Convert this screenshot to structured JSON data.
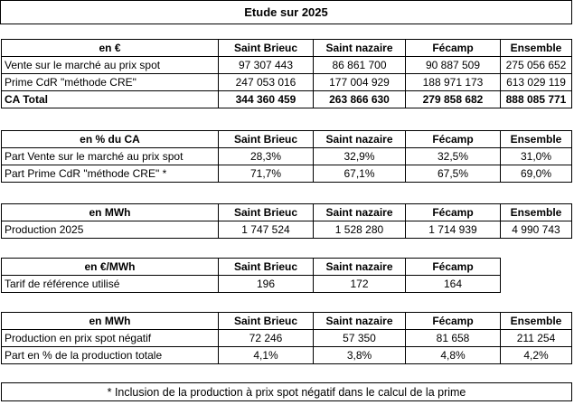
{
  "title": "Etude sur 2025",
  "sections": [
    {
      "header": [
        "en €",
        "Saint Brieuc",
        "Saint nazaire",
        "Fécamp",
        "Ensemble"
      ],
      "rows": [
        [
          "Vente sur le marché au prix spot",
          "97 307 443",
          "86 861 700",
          "90 887 509",
          "275 056 652"
        ],
        [
          "Prime CdR \"méthode CRE\"",
          "247 053 016",
          "177 004 929",
          "188 971 173",
          "613 029 119"
        ],
        [
          "CA Total",
          "344 360 459",
          "263 866 630",
          "279 858 682",
          "888 085 771"
        ]
      ]
    },
    {
      "header": [
        "en % du CA",
        "Saint Brieuc",
        "Saint nazaire",
        "Fécamp",
        "Ensemble"
      ],
      "rows": [
        [
          "Part Vente sur le marché au prix spot",
          "28,3%",
          "32,9%",
          "32,5%",
          "31,0%"
        ],
        [
          "Part Prime CdR \"méthode CRE\" *",
          "71,7%",
          "67,1%",
          "67,5%",
          "69,0%"
        ]
      ]
    },
    {
      "header": [
        "en MWh",
        "Saint Brieuc",
        "Saint nazaire",
        "Fécamp",
        "Ensemble"
      ],
      "rows": [
        [
          "Production 2025",
          "1 747 524",
          "1 528 280",
          "1 714 939",
          "4 990 743"
        ]
      ]
    },
    {
      "header": [
        "en €/MWh",
        "Saint Brieuc",
        "Saint nazaire",
        "Fécamp",
        ""
      ],
      "rows": [
        [
          "Tarif de référence utilisé",
          "196",
          "172",
          "164",
          ""
        ]
      ]
    },
    {
      "header": [
        "en MWh",
        "Saint Brieuc",
        "Saint nazaire",
        "Fécamp",
        "Ensemble"
      ],
      "rows": [
        [
          "Production en prix spot négatif",
          "72 246",
          "57 350",
          "81 658",
          "211 254"
        ],
        [
          "Part en % de la production totale",
          "4,1%",
          "3,8%",
          "4,8%",
          "4,2%"
        ]
      ]
    }
  ],
  "footnote": "* Inclusion de la production à prix spot négatif dans le calcul de la prime"
}
